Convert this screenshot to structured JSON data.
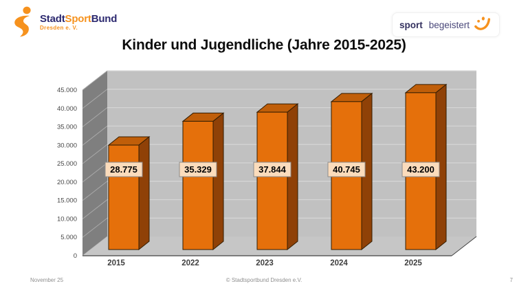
{
  "title": "Kinder und Jugendliche (Jahre 2015-2025)",
  "header": {
    "logo_left": {
      "icon": "swoosh-figure-icon",
      "parts": [
        {
          "text": "Stadt",
          "color": "#2d2a70"
        },
        {
          "text": "Sport",
          "color": "#f6921e"
        },
        {
          "text": "Bund",
          "color": "#2d2a70"
        }
      ],
      "subtitle": "Dresden e. V.",
      "subtitle_color": "#f6921e"
    },
    "logo_right": {
      "icon": "smiley-icon",
      "word1": "sport",
      "word2": "begeistert",
      "word1_color": "#34315f",
      "word2_color": "#4a487a",
      "accent": "#f6921e"
    }
  },
  "chart_data": {
    "type": "bar",
    "style": "3d-column",
    "title": "Kinder und Jugendliche (Jahre 2015-2025)",
    "categories": [
      "2015",
      "2022",
      "2023",
      "2024",
      "2025"
    ],
    "values": [
      28775,
      35329,
      37844,
      40745,
      43200
    ],
    "value_labels": [
      "28.775",
      "35.329",
      "37.844",
      "40.745",
      "43.200"
    ],
    "xlabel": "",
    "ylabel": "",
    "ylim": [
      0,
      45000
    ],
    "ytick_step": 5000,
    "ytick_labels": [
      "0",
      "5.000",
      "10.000",
      "15.000",
      "20.000",
      "25.000",
      "30.000",
      "35.000",
      "40.000",
      "45.000"
    ],
    "legend": "none",
    "gridlines": true,
    "colors": {
      "bar_front": "#e5700b",
      "bar_top": "#c05e09",
      "bar_side": "#8f4107",
      "bar_outline": "#331d02",
      "wall_side": "#7f7f7f",
      "wall_back": "#c1c1c1",
      "floor": "#c6c6c6",
      "grid_back": "#d6d6d6",
      "grid_side": "#a9a9a9",
      "axis": "#404040",
      "tick_text": "#454545",
      "label_box_fill": "#fbdcbc",
      "label_box_border": "#8c8c8c",
      "label_text": "#000000"
    }
  },
  "footer": {
    "date": "November 25",
    "copyright": "© Stadtsportbund Dresden e.V.",
    "page": "7"
  }
}
